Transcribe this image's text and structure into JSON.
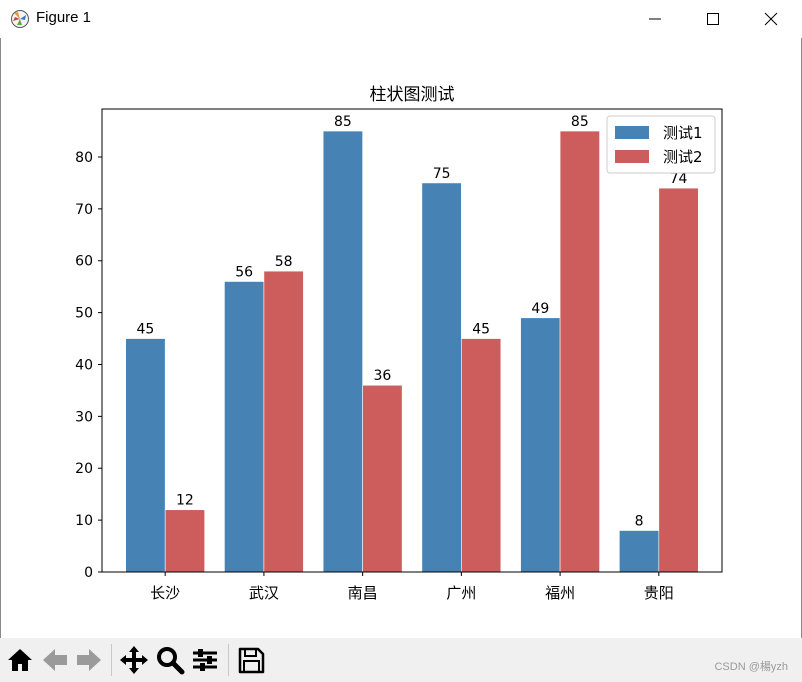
{
  "window": {
    "title": "Figure 1",
    "icons": [
      "matplotlib-logo-icon",
      "minimize-icon",
      "maximize-icon",
      "close-icon"
    ]
  },
  "chart_data": {
    "type": "bar",
    "title": "柱状图测试",
    "xlabel": "",
    "ylabel": "",
    "categories": [
      "长沙",
      "武汉",
      "南昌",
      "广州",
      "福州",
      "贵阳"
    ],
    "series": [
      {
        "name": "测试1",
        "values": [
          45,
          56,
          85,
          75,
          49,
          8
        ],
        "color": "#4682b4"
      },
      {
        "name": "测试2",
        "values": [
          12,
          58,
          36,
          45,
          85,
          74
        ],
        "color": "#cd5c5c"
      }
    ],
    "ylim": [
      0,
      89.25
    ],
    "yticks": [
      0,
      10,
      20,
      30,
      40,
      50,
      60,
      70,
      80
    ],
    "grid": false,
    "legend_position": "top-right",
    "data_labels": true
  },
  "toolbar": {
    "icons": [
      "home-icon",
      "back-icon",
      "forward-icon",
      "pan-icon",
      "zoom-icon",
      "configure-subplots-icon",
      "save-icon"
    ]
  },
  "watermark": "CSDN @楊yzh"
}
